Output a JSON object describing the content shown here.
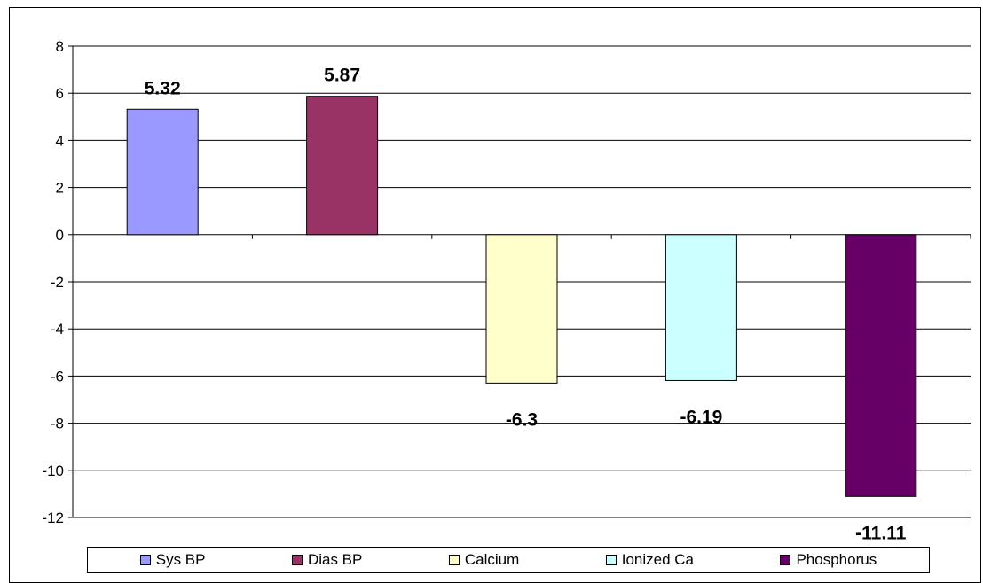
{
  "chart_data": {
    "type": "bar",
    "categories": [
      "Sys BP",
      "Dias BP",
      "Calcium",
      "Ionized Ca",
      "Phosphorus"
    ],
    "values": [
      5.32,
      5.87,
      -6.3,
      -6.19,
      -11.11
    ],
    "data_labels": [
      "5.32",
      "5.87",
      "-6.3",
      "-6.19",
      "-11.11"
    ],
    "colors": [
      "#9999FF",
      "#993366",
      "#FFFFCC",
      "#CCFFFF",
      "#660066"
    ],
    "ylim": [
      -12,
      8
    ],
    "yticks": [
      "8",
      "6",
      "4",
      "2",
      "0",
      "-2",
      "-4",
      "-6",
      "-8",
      "-10",
      "-12"
    ],
    "title": "",
    "xlabel": "",
    "ylabel": "",
    "grid": true,
    "legend_position": "bottom"
  }
}
